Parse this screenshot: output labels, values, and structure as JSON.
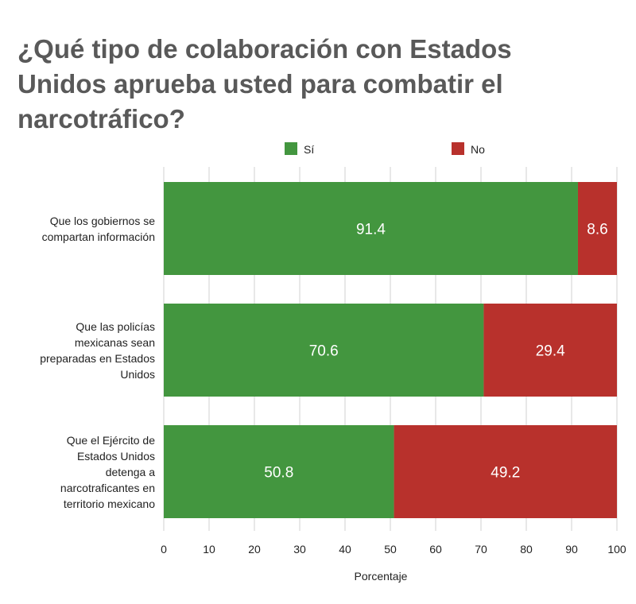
{
  "title": "¿Qué tipo de colaboración con Estados Unidos aprueba usted para combatir el narcotráfico?",
  "colors": {
    "si": "#43963f",
    "no": "#b8312c",
    "grid": "#d0d0d0",
    "text": "#222222",
    "title": "#595959"
  },
  "chart_data": {
    "type": "bar",
    "orientation": "horizontal",
    "stacked": true,
    "title": "¿Qué tipo de colaboración con Estados Unidos aprueba usted para combatir el narcotráfico?",
    "xlabel": "Porcentaje",
    "ylabel": "",
    "xlim": [
      0,
      100
    ],
    "xticks": [
      0,
      10,
      20,
      30,
      40,
      50,
      60,
      70,
      80,
      90,
      100
    ],
    "grid": true,
    "legend_position": "top",
    "categories": [
      "Que los gobiernos se compartan información",
      "Que las policías mexicanas sean preparadas en Estados Unidos",
      "Que el Ejército de Estados Unidos detenga a narcotraficantes en territorio mexicano"
    ],
    "category_lines": [
      [
        "Que los gobiernos se",
        "compartan información"
      ],
      [
        "Que las policías",
        "mexicanas sean",
        "preparadas en Estados",
        "Unidos"
      ],
      [
        "Que el Ejército de",
        "Estados Unidos",
        "detenga a",
        "narcotraficantes en",
        "territorio mexicano"
      ]
    ],
    "series": [
      {
        "name": "Sí",
        "color": "#43963f",
        "values": [
          91.4,
          70.6,
          50.8
        ],
        "labels": [
          "91.4",
          "70.6",
          "50.8"
        ]
      },
      {
        "name": "No",
        "color": "#b8312c",
        "values": [
          8.6,
          29.4,
          49.2
        ],
        "labels": [
          "8.6",
          "29.4",
          "49.2"
        ]
      }
    ]
  }
}
